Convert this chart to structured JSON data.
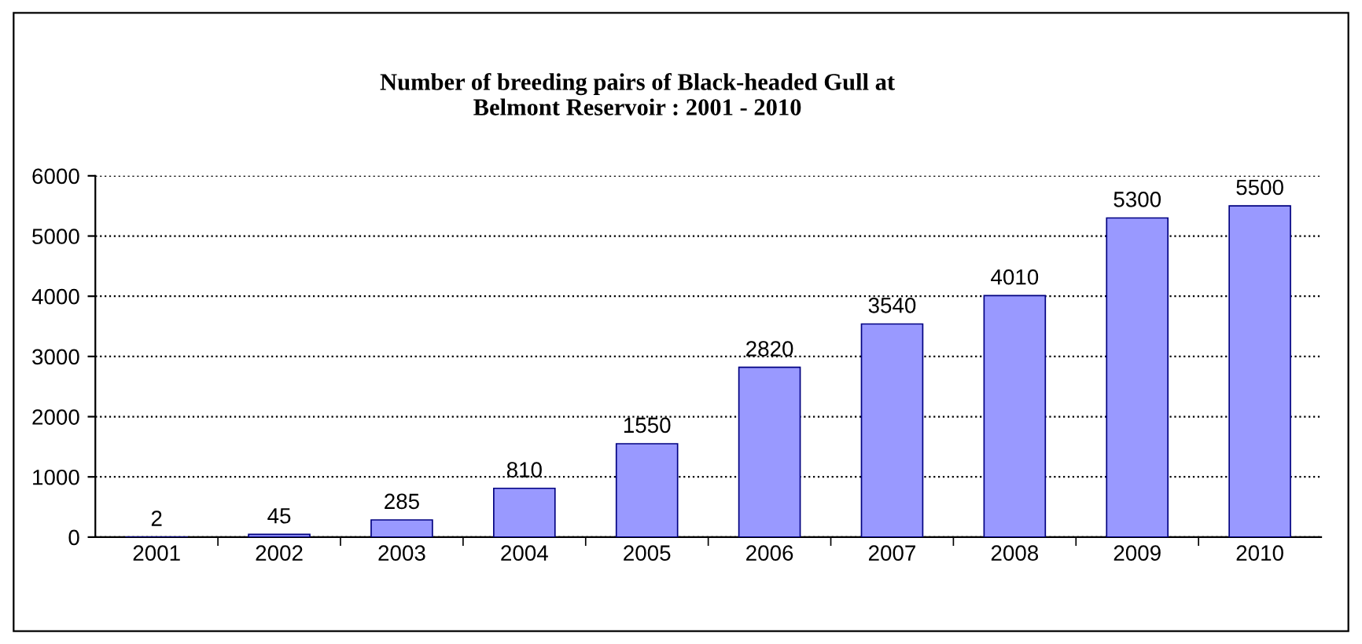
{
  "chart_data": {
    "type": "bar",
    "title": "Number of breeding pairs of Black-headed Gull at\nBelmont Reservoir : 2001 - 2010",
    "categories": [
      "2001",
      "2002",
      "2003",
      "2004",
      "2005",
      "2006",
      "2007",
      "2008",
      "2009",
      "2010"
    ],
    "values": [
      2,
      45,
      285,
      810,
      1550,
      2820,
      3540,
      4010,
      5300,
      5500
    ],
    "color": "#9999ff",
    "ylim": [
      0,
      6000
    ],
    "yticks": [
      0,
      1000,
      2000,
      3000,
      4000,
      5000,
      6000
    ],
    "grid": "y",
    "data_labels": true
  }
}
